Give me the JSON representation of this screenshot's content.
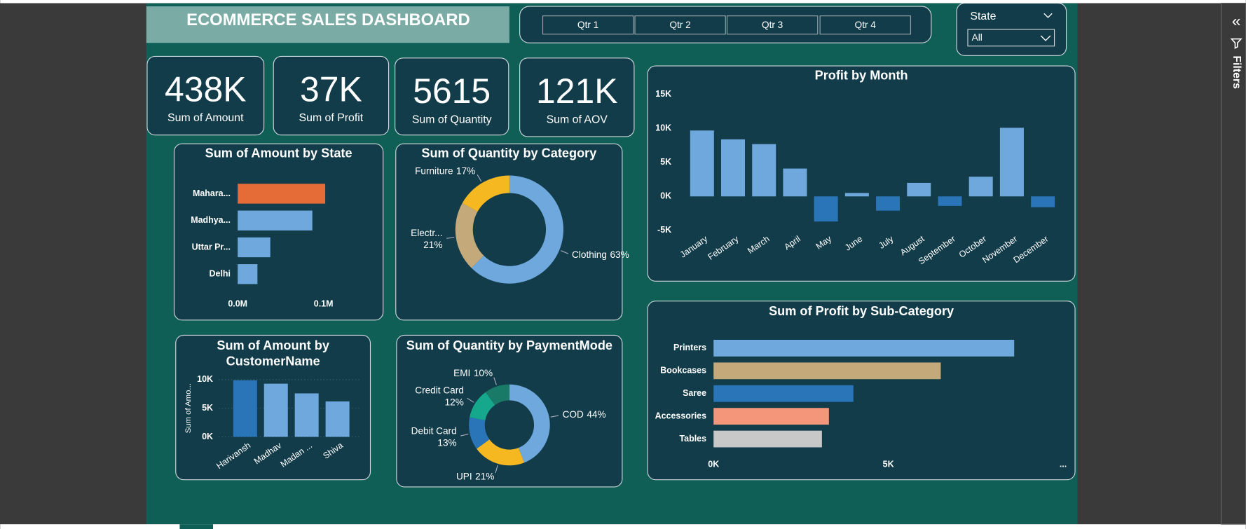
{
  "header": {
    "title": "ECOMMERCE SALES DASHBOARD"
  },
  "quarter_buttons": [
    "Qtr 1",
    "Qtr 2",
    "Qtr 3",
    "Qtr 4"
  ],
  "state_slicer": {
    "label": "State",
    "selected": "All"
  },
  "kpis": [
    {
      "value": "438K",
      "label": "Sum of Amount"
    },
    {
      "value": "37K",
      "label": "Sum of Profit"
    },
    {
      "value": "5615",
      "label": "Sum of Quantity"
    },
    {
      "value": "121K",
      "label": "Sum of AOV"
    }
  ],
  "filters_pane": {
    "label": "Filters"
  },
  "chart_data": [
    {
      "type": "hbar",
      "title": "Sum of Amount by State",
      "categories": [
        "Mahara...",
        "Madhya...",
        "Uttar Pr...",
        "Delhi"
      ],
      "values": [
        0.102,
        0.087,
        0.038,
        0.023
      ],
      "colors": [
        "#e66c37",
        "#6fa8dc",
        "#6fa8dc",
        "#6fa8dc"
      ],
      "xlim": [
        0,
        0.12
      ],
      "xticks": [
        {
          "value": 0,
          "label": "0.0M"
        },
        {
          "value": 0.1,
          "label": "0.1M"
        }
      ]
    },
    {
      "type": "donut",
      "title": "Sum of Quantity by Category",
      "categories": [
        "Clothing",
        "Electr...",
        "Furniture"
      ],
      "values": [
        63,
        21,
        17
      ],
      "value_labels": [
        "63%",
        "21%",
        "17%"
      ],
      "colors": [
        "#6fa8dc",
        "#c4aa7a",
        "#f5b820"
      ]
    },
    {
      "type": "bar",
      "title": "Profit by Month",
      "categories": [
        "January",
        "February",
        "March",
        "April",
        "May",
        "June",
        "July",
        "August",
        "September",
        "October",
        "November",
        "December"
      ],
      "values": [
        9.7,
        8.4,
        7.7,
        4.1,
        -3.7,
        0.5,
        -2.1,
        2.0,
        -1.4,
        2.9,
        10.1,
        -1.6
      ],
      "color": "#6fa8dc",
      "negative_color": "#2a74b8",
      "ylim": [
        -5,
        15
      ],
      "yticks": [
        {
          "value": -5,
          "label": "-5K"
        },
        {
          "value": 0,
          "label": "0K"
        },
        {
          "value": 5,
          "label": "5K"
        },
        {
          "value": 10,
          "label": "10K"
        },
        {
          "value": 15,
          "label": "15K"
        }
      ]
    },
    {
      "type": "bar",
      "title": "Sum of Amount by CustomerName",
      "y_label": "Sum of Amo...",
      "categories": [
        "Harivansh",
        "Madhav",
        "Madan ...",
        "Shiva"
      ],
      "values": [
        9.9,
        9.3,
        7.6,
        6.2
      ],
      "colors": [
        "#2a74b8",
        "#6fa8dc",
        "#6fa8dc",
        "#6fa8dc"
      ],
      "ylim": [
        0,
        10
      ],
      "yticks": [
        {
          "value": 0,
          "label": "0K"
        },
        {
          "value": 5,
          "label": "5K"
        },
        {
          "value": 10,
          "label": "10K"
        }
      ],
      "grid": true
    },
    {
      "type": "donut",
      "title": "Sum of Quantity by PaymentMode",
      "categories": [
        "COD",
        "UPI",
        "Debit Card",
        "Credit Card",
        "EMI"
      ],
      "values": [
        44,
        21,
        13,
        12,
        10
      ],
      "value_labels": [
        "44%",
        "21%",
        "13%",
        "12%",
        "10%"
      ],
      "colors": [
        "#6fa8dc",
        "#f5b820",
        "#2a74b8",
        "#15a88d",
        "#1a7a68"
      ]
    },
    {
      "type": "hbar",
      "title": "Sum of Profit by Sub-Category",
      "categories": [
        "Printers",
        "Bookcases",
        "Saree",
        "Accessories",
        "Tables"
      ],
      "values": [
        8.6,
        6.5,
        4.0,
        3.3,
        3.1
      ],
      "colors": [
        "#6fa8dc",
        "#c4aa7a",
        "#2a74b8",
        "#f4967a",
        "#c8c8c8"
      ],
      "xlim": [
        0,
        10
      ],
      "xticks": [
        {
          "value": 0,
          "label": "0K"
        },
        {
          "value": 5,
          "label": "5K"
        },
        {
          "value": 10,
          "label": "..."
        }
      ]
    }
  ]
}
